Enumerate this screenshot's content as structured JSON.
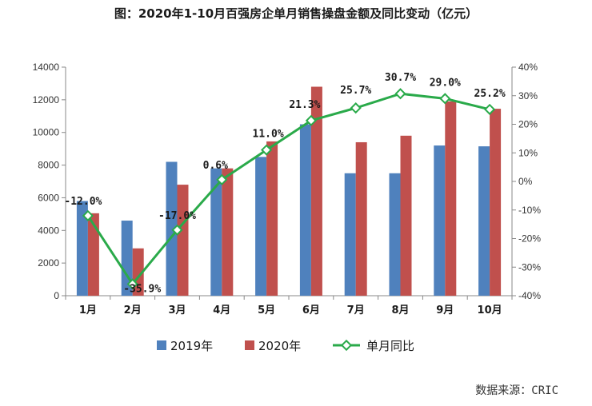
{
  "chart_data": {
    "type": "bar",
    "title": "图：2020年1-10月百强房企单月销售操盘金额及同比变动（亿元）",
    "source": "数据来源：CRIC",
    "categories": [
      "1月",
      "2月",
      "3月",
      "4月",
      "5月",
      "6月",
      "7月",
      "8月",
      "9月",
      "10月"
    ],
    "y_left": {
      "min": 0,
      "max": 14000,
      "ticks": [
        "0",
        "2000",
        "4000",
        "6000",
        "8000",
        "10000",
        "12000",
        "14000"
      ]
    },
    "y_right": {
      "min": -40,
      "max": 40,
      "ticks": [
        "-40%",
        "-30%",
        "-20%",
        "-10%",
        "0%",
        "10%",
        "20%",
        "30%",
        "40%"
      ]
    },
    "series": [
      {
        "name": "2019年",
        "kind": "bar",
        "axis": "left",
        "color": "#4f81bd",
        "values": [
          5800,
          4600,
          8200,
          7800,
          8500,
          10500,
          7500,
          7500,
          9200,
          9150
        ]
      },
      {
        "name": "2020年",
        "kind": "bar",
        "axis": "left",
        "color": "#c0504d",
        "values": [
          5050,
          2900,
          6800,
          7800,
          9450,
          12800,
          9400,
          9800,
          11900,
          11450
        ]
      },
      {
        "name": "单月同比",
        "kind": "line",
        "axis": "right",
        "color": "#2aaa4a",
        "values": [
          -12.0,
          -35.9,
          -17.0,
          0.6,
          11.0,
          21.3,
          25.7,
          30.7,
          29.0,
          25.2
        ],
        "labels": [
          "-12.0%",
          "-35.9%",
          "-17.0%",
          "0.6%",
          "11.0%",
          "21.3%",
          "25.7%",
          "30.7%",
          "29.0%",
          "25.2%"
        ]
      }
    ],
    "legend": {
      "position": "bottom"
    },
    "grid": false
  }
}
